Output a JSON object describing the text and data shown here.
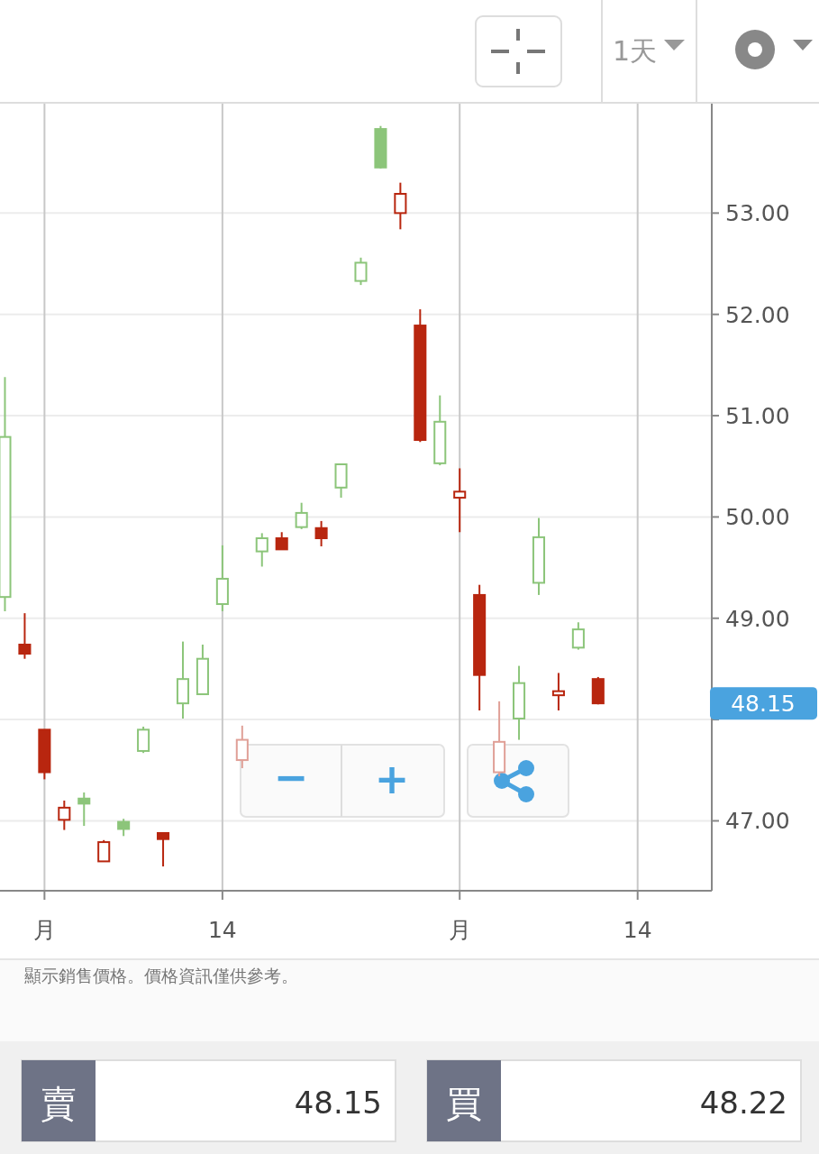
{
  "chart_data": {
    "type": "candlestick",
    "categories": [
      null,
      null,
      "月",
      null,
      null,
      null,
      null,
      null,
      null,
      null,
      null,
      "14",
      null,
      null,
      null,
      null,
      null,
      null,
      null,
      null,
      null,
      null,
      null,
      "月",
      null,
      null,
      null,
      null,
      null,
      null,
      null,
      null,
      "14",
      null,
      null,
      null
    ],
    "ohlc": [
      [
        49.21,
        51.38,
        49.07,
        50.79
      ],
      [
        48.74,
        49.05,
        48.6,
        48.65
      ],
      [
        47.9,
        47.9,
        47.41,
        47.48
      ],
      [
        47.01,
        47.2,
        46.91,
        47.13
      ],
      [
        47.22,
        47.28,
        46.95,
        47.17
      ],
      [
        46.6,
        46.81,
        46.6,
        46.79
      ],
      [
        46.99,
        47.02,
        46.85,
        46.92
      ],
      [
        47.69,
        47.93,
        47.67,
        47.9
      ],
      [
        46.88,
        46.88,
        46.55,
        46.82
      ],
      [
        48.16,
        48.77,
        48.01,
        48.4
      ],
      [
        48.25,
        48.74,
        48.25,
        48.6
      ],
      [
        49.14,
        49.72,
        49.07,
        49.39
      ],
      [
        47.6,
        47.94,
        47.52,
        47.8
      ],
      [
        49.66,
        49.84,
        49.51,
        49.79
      ],
      [
        49.79,
        49.85,
        49.68,
        49.68
      ],
      [
        49.9,
        50.14,
        49.88,
        50.04
      ],
      [
        49.89,
        49.96,
        49.71,
        49.79
      ],
      [
        50.29,
        50.52,
        50.19,
        50.52
      ],
      [
        52.33,
        52.56,
        52.29,
        52.51
      ],
      [
        53.83,
        53.86,
        53.44,
        53.45
      ],
      [
        53.0,
        53.3,
        52.84,
        53.19
      ],
      [
        51.89,
        52.05,
        50.74,
        50.76
      ],
      [
        50.53,
        51.2,
        50.51,
        50.94
      ],
      [
        50.19,
        50.48,
        49.85,
        50.25
      ],
      [
        49.23,
        49.33,
        48.09,
        48.44
      ],
      [
        47.48,
        48.18,
        47.44,
        47.78
      ],
      [
        48.01,
        48.53,
        47.8,
        48.36
      ],
      [
        49.35,
        49.99,
        49.23,
        49.8
      ],
      [
        48.24,
        48.46,
        48.09,
        48.28
      ],
      [
        48.71,
        48.96,
        48.69,
        48.89
      ],
      [
        48.4,
        48.42,
        48.15,
        48.16
      ],
      null,
      null,
      null,
      null,
      null
    ],
    "colors": [
      "#8cc57a",
      "#b8260f",
      "#b8260f",
      "#b8260f",
      "#8cc57a",
      "#b8260f",
      "#8cc57a",
      "#8cc57a",
      "#b8260f",
      "#8cc57a",
      "#8cc57a",
      "#8cc57a",
      "#e0a097",
      "#8cc57a",
      "#b8260f",
      "#8cc57a",
      "#b8260f",
      "#8cc57a",
      "#8cc57a",
      "#8cc57a",
      "#b8260f",
      "#b8260f",
      "#8cc57a",
      "#b8260f",
      "#b8260f",
      "#e0a097",
      "#8cc57a",
      "#8cc57a",
      "#b8260f",
      "#8cc57a",
      "#b8260f",
      null,
      null,
      null,
      null,
      null
    ],
    "ylim": [
      46.31,
      54.08
    ],
    "yticks": [
      {
        "value": 47,
        "label": "47.00"
      },
      {
        "value": 48,
        "label": null
      },
      {
        "value": 49,
        "label": "49.00"
      },
      {
        "value": 50,
        "label": "50.00"
      },
      {
        "value": 51,
        "label": "51.00"
      },
      {
        "value": 52,
        "label": "52.00"
      },
      {
        "value": 53,
        "label": "53.00"
      }
    ],
    "grid": true,
    "annotations": [
      "1天",
      "−",
      "+",
      "顯示銷售價格。價格資訊僅供參考。",
      "賣",
      "48.15",
      "買",
      "48.22",
      "48.15"
    ]
  }
}
